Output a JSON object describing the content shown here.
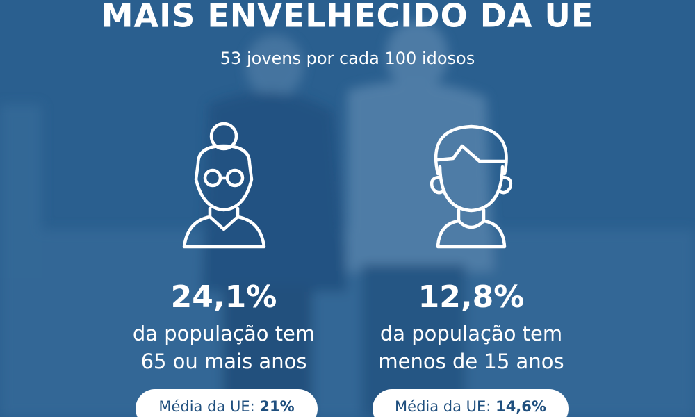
{
  "header": {
    "title": "MAIS ENVELHECIDO DA UE",
    "subtitle": "53 jovens por cada 100 idosos"
  },
  "stats": [
    {
      "value": "24,1%",
      "lines": [
        "da população tem",
        "65 ou mais anos"
      ],
      "average_label": "Média da UE:",
      "average_value": "21%"
    },
    {
      "value": "12,8%",
      "lines": [
        "da população tem",
        "menos de 15 anos"
      ],
      "average_label": "Média da UE:",
      "average_value": "14,6%"
    }
  ]
}
